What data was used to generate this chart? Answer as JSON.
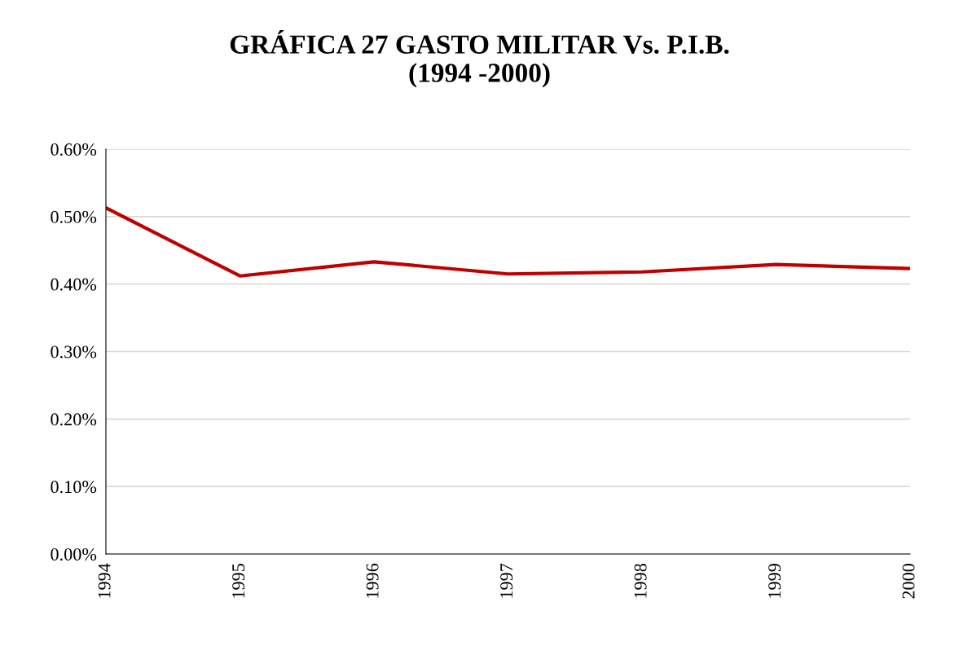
{
  "chart_data": {
    "type": "line",
    "title": "GRÁFICA 27 GASTO MILITAR Vs. P.I.B.\n(1994 -2000)",
    "categories": [
      "1994",
      "1995",
      "1996",
      "1997",
      "1998",
      "1999",
      "2000"
    ],
    "series": [
      {
        "color": "#c00000",
        "values": [
          0.513,
          0.412,
          0.433,
          0.415,
          0.418,
          0.429,
          0.423
        ]
      }
    ],
    "ylim": [
      0,
      0.6
    ],
    "yticks": [
      {
        "value": 0,
        "label": "0.00%"
      },
      {
        "value": 0.1,
        "label": "0.10%"
      },
      {
        "value": 0.2,
        "label": "0.20%"
      },
      {
        "value": 0.3,
        "label": "0.30%"
      },
      {
        "value": 0.4,
        "label": "0.40%"
      },
      {
        "value": 0.5,
        "label": "0.50%"
      },
      {
        "value": 0.6,
        "label": "0.60%"
      }
    ],
    "grid": "y",
    "legend": false,
    "marker": "none",
    "line_style": "solid"
  }
}
